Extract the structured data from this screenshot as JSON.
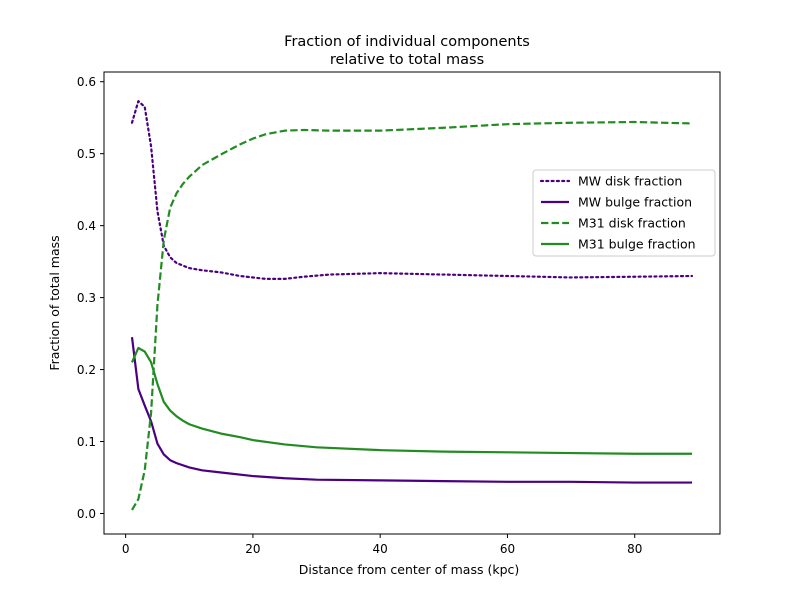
{
  "chart_data": {
    "type": "line",
    "title_lines": [
      "Fraction of individual components",
      "relative to total mass"
    ],
    "xlabel": "Distance from center of mass (kpc)",
    "ylabel": "Fraction of total mass",
    "xlim": [
      -3.4,
      93.4
    ],
    "ylim": [
      -0.0285,
      0.6135
    ],
    "xticks": [
      0,
      20,
      40,
      60,
      80
    ],
    "yticks": [
      0.0,
      0.1,
      0.2,
      0.3,
      0.4,
      0.5,
      0.6
    ],
    "ytick_labels": [
      "0.0",
      "0.1",
      "0.2",
      "0.3",
      "0.4",
      "0.5",
      "0.6"
    ],
    "grid": false,
    "legend_position": "center-right",
    "series": [
      {
        "name": "MW disk fraction",
        "color": "#4b0082",
        "style": "dotted",
        "x": [
          1,
          2,
          3,
          4,
          5,
          6,
          7,
          8,
          10,
          12,
          15,
          18,
          22,
          25,
          28,
          32,
          40,
          50,
          60,
          70,
          80,
          89
        ],
        "y": [
          0.543,
          0.573,
          0.565,
          0.51,
          0.42,
          0.372,
          0.356,
          0.348,
          0.341,
          0.338,
          0.335,
          0.33,
          0.326,
          0.326,
          0.329,
          0.332,
          0.334,
          0.332,
          0.33,
          0.328,
          0.329,
          0.33
        ]
      },
      {
        "name": "MW bulge fraction",
        "color": "#4b0082",
        "style": "solid",
        "x": [
          1,
          2,
          3,
          4,
          5,
          6,
          7,
          8,
          10,
          12,
          15,
          20,
          25,
          30,
          40,
          50,
          60,
          70,
          80,
          89
        ],
        "y": [
          0.245,
          0.173,
          0.15,
          0.128,
          0.097,
          0.082,
          0.074,
          0.07,
          0.064,
          0.06,
          0.057,
          0.052,
          0.049,
          0.047,
          0.046,
          0.045,
          0.044,
          0.044,
          0.043,
          0.043
        ]
      },
      {
        "name": "M31 disk fraction",
        "color": "#228b22",
        "style": "dashed",
        "x": [
          1,
          2,
          3,
          4,
          5,
          6,
          7,
          8,
          9,
          10,
          12,
          15,
          18,
          20,
          22,
          25,
          28,
          32,
          40,
          50,
          60,
          70,
          80,
          89
        ],
        "y": [
          0.005,
          0.02,
          0.06,
          0.14,
          0.29,
          0.38,
          0.425,
          0.445,
          0.458,
          0.468,
          0.484,
          0.499,
          0.513,
          0.521,
          0.527,
          0.532,
          0.533,
          0.532,
          0.532,
          0.536,
          0.541,
          0.543,
          0.544,
          0.542
        ]
      },
      {
        "name": "M31 bulge fraction",
        "color": "#228b22",
        "style": "solid",
        "x": [
          1,
          2,
          3,
          4,
          5,
          6,
          7,
          8,
          9,
          10,
          12,
          15,
          18,
          20,
          25,
          30,
          40,
          50,
          60,
          70,
          80,
          89
        ],
        "y": [
          0.21,
          0.23,
          0.225,
          0.21,
          0.18,
          0.155,
          0.143,
          0.135,
          0.129,
          0.124,
          0.118,
          0.111,
          0.106,
          0.102,
          0.096,
          0.092,
          0.088,
          0.086,
          0.085,
          0.084,
          0.083,
          0.083
        ]
      }
    ]
  }
}
